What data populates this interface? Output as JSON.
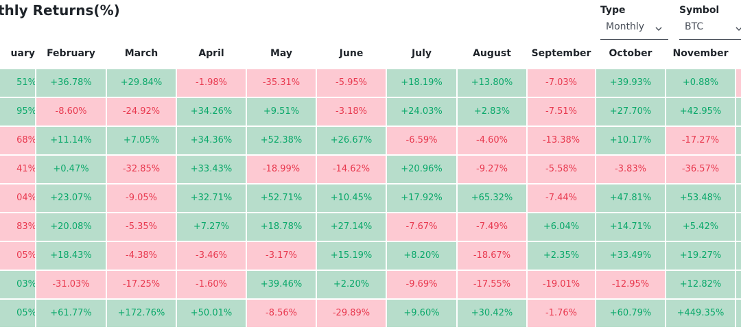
{
  "title": "thly Returns(%)",
  "controls": {
    "type_label": "Type",
    "type_value": "Monthly",
    "symbol_label": "Symbol",
    "symbol_value": "BTC"
  },
  "columns": [
    "uary",
    "February",
    "March",
    "April",
    "May",
    "June",
    "July",
    "August",
    "September",
    "October",
    "November"
  ],
  "colors": {
    "positive_bg": "#b7ddcb",
    "positive_text": "#0aa86a",
    "negative_bg": "#fdc9d2",
    "negative_text": "#e8394f"
  },
  "rows": [
    [
      "51%",
      "+36.78%",
      "+29.84%",
      "-1.98%",
      "-35.31%",
      "-5.95%",
      "+18.19%",
      "+13.80%",
      "-7.03%",
      "+39.93%",
      "+0.88%",
      ""
    ],
    [
      "95%",
      "-8.60%",
      "-24.92%",
      "+34.26%",
      "+9.51%",
      "-3.18%",
      "+24.03%",
      "+2.83%",
      "-7.51%",
      "+27.70%",
      "+42.95%",
      ""
    ],
    [
      "68%",
      "+11.14%",
      "+7.05%",
      "+34.36%",
      "+52.38%",
      "+26.67%",
      "-6.59%",
      "-4.60%",
      "-13.38%",
      "+10.17%",
      "-17.27%",
      ""
    ],
    [
      "41%",
      "+0.47%",
      "-32.85%",
      "+33.43%",
      "-18.99%",
      "-14.62%",
      "+20.96%",
      "-9.27%",
      "-5.58%",
      "-3.83%",
      "-36.57%",
      ""
    ],
    [
      "04%",
      "+23.07%",
      "-9.05%",
      "+32.71%",
      "+52.71%",
      "+10.45%",
      "+17.92%",
      "+65.32%",
      "-7.44%",
      "+47.81%",
      "+53.48%",
      ""
    ],
    [
      "83%",
      "+20.08%",
      "-5.35%",
      "+7.27%",
      "+18.78%",
      "+27.14%",
      "-7.67%",
      "-7.49%",
      "+6.04%",
      "+14.71%",
      "+5.42%",
      ""
    ],
    [
      "05%",
      "+18.43%",
      "-4.38%",
      "-3.46%",
      "-3.17%",
      "+15.19%",
      "+8.20%",
      "-18.67%",
      "+2.35%",
      "+33.49%",
      "+19.27%",
      ""
    ],
    [
      "03%",
      "-31.03%",
      "-17.25%",
      "-1.60%",
      "+39.46%",
      "+2.20%",
      "-9.69%",
      "-17.55%",
      "-19.01%",
      "-12.95%",
      "+12.82%",
      ""
    ],
    [
      "05%",
      "+61.77%",
      "+172.76%",
      "+50.01%",
      "-8.56%",
      "-29.89%",
      "+9.60%",
      "+30.42%",
      "-1.76%",
      "+60.79%",
      "+449.35%",
      ""
    ]
  ],
  "row_signs": [
    [
      "pos",
      "pos",
      "pos",
      "neg",
      "neg",
      "neg",
      "pos",
      "pos",
      "neg",
      "pos",
      "pos",
      "neg"
    ],
    [
      "pos",
      "neg",
      "neg",
      "pos",
      "pos",
      "neg",
      "pos",
      "pos",
      "neg",
      "pos",
      "pos",
      "pos"
    ],
    [
      "neg",
      "pos",
      "pos",
      "pos",
      "pos",
      "pos",
      "neg",
      "neg",
      "neg",
      "pos",
      "neg",
      "pos"
    ],
    [
      "neg",
      "pos",
      "neg",
      "pos",
      "neg",
      "neg",
      "pos",
      "neg",
      "neg",
      "neg",
      "neg",
      "pos"
    ],
    [
      "neg",
      "pos",
      "neg",
      "pos",
      "pos",
      "pos",
      "pos",
      "pos",
      "neg",
      "pos",
      "pos",
      "pos"
    ],
    [
      "neg",
      "pos",
      "neg",
      "pos",
      "pos",
      "pos",
      "neg",
      "neg",
      "pos",
      "pos",
      "pos",
      "pos"
    ],
    [
      "neg",
      "pos",
      "neg",
      "neg",
      "neg",
      "pos",
      "pos",
      "neg",
      "pos",
      "pos",
      "pos",
      "pos"
    ],
    [
      "pos",
      "neg",
      "neg",
      "neg",
      "pos",
      "pos",
      "neg",
      "neg",
      "neg",
      "neg",
      "pos",
      "pos"
    ],
    [
      "pos",
      "pos",
      "pos",
      "pos",
      "neg",
      "neg",
      "pos",
      "pos",
      "neg",
      "pos",
      "pos",
      "pos"
    ]
  ]
}
